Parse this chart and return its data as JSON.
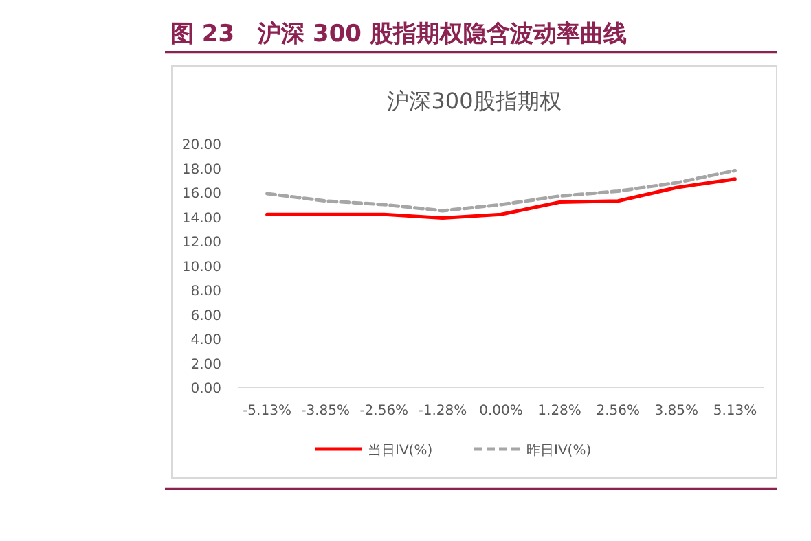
{
  "chart_data": {
    "type": "line",
    "title": "图 23　沪深 300 股指期权隐含波动率曲线",
    "subtitle": "沪深300股指期权",
    "categories": [
      "-5.13%",
      "-3.85%",
      "-2.56%",
      "-1.28%",
      "0.00%",
      "1.28%",
      "2.56%",
      "3.85%",
      "5.13%"
    ],
    "series": [
      {
        "name": "当日IV(%)",
        "color": "#ff0000",
        "line_style": "solid",
        "values": [
          14.2,
          14.2,
          14.2,
          13.9,
          14.2,
          15.2,
          15.3,
          16.4,
          17.1
        ]
      },
      {
        "name": "昨日IV(%)",
        "color": "#a6a6a6",
        "line_style": "dashed",
        "values": [
          15.9,
          15.3,
          15.0,
          14.5,
          15.0,
          15.7,
          16.1,
          16.8,
          17.8
        ]
      }
    ],
    "ylim": [
      0,
      20
    ],
    "yticks": [
      {
        "value": 0,
        "label": "0.00"
      },
      {
        "value": 2,
        "label": "2.00"
      },
      {
        "value": 4,
        "label": "4.00"
      },
      {
        "value": 6,
        "label": "6.00"
      },
      {
        "value": 8,
        "label": "8.00"
      },
      {
        "value": 10,
        "label": "10.00"
      },
      {
        "value": 12,
        "label": "12.00"
      },
      {
        "value": 14,
        "label": "14.00"
      },
      {
        "value": 16,
        "label": "16.00"
      },
      {
        "value": 18,
        "label": "18.00"
      },
      {
        "value": 20,
        "label": "20.00"
      }
    ],
    "grid": false,
    "legend": "bottom"
  }
}
